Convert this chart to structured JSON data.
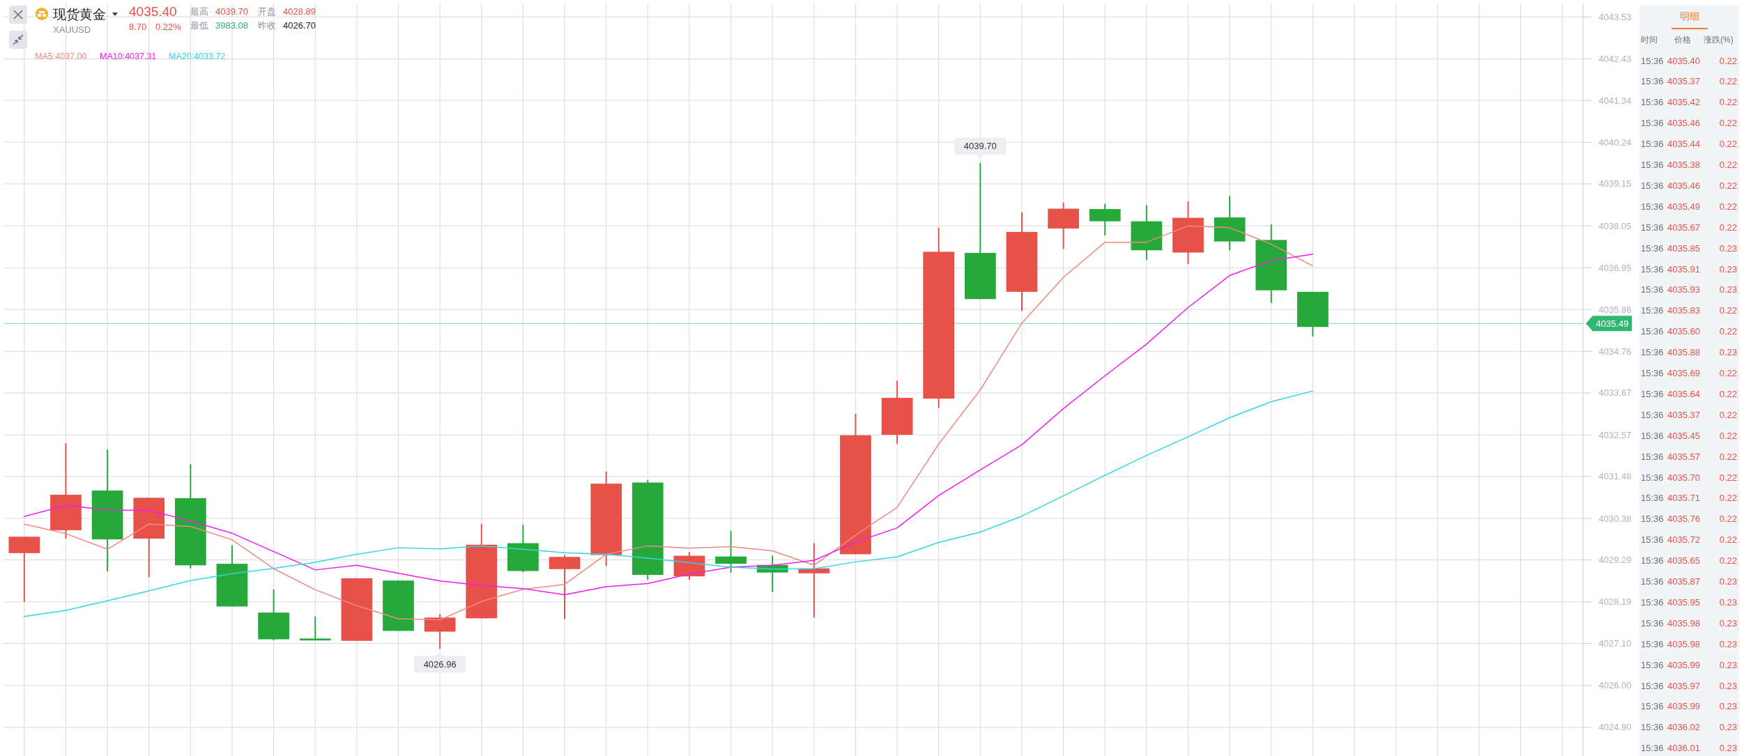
{
  "chart_data": {
    "type": "candlestick",
    "title": "现货黄金",
    "subtitle": "XAUUSD",
    "categories": [
      null,
      null,
      null,
      null,
      null,
      null,
      null,
      null,
      null,
      null,
      null,
      null,
      null,
      null,
      null,
      null,
      null,
      null,
      null,
      null,
      null,
      null,
      null,
      null,
      null,
      null,
      null,
      null,
      null,
      null,
      null,
      null,
      null,
      null,
      null,
      null,
      null,
      null
    ],
    "ohlc": [
      [
        4029.47,
        4029.9,
        4028.19,
        4029.9
      ],
      [
        4030.07,
        4032.35,
        4029.85,
        4031.0
      ],
      [
        4031.11,
        4032.18,
        4028.99,
        4029.83
      ],
      [
        4029.85,
        4030.92,
        4028.84,
        4030.92
      ],
      [
        4030.91,
        4031.8,
        4029.07,
        4029.15
      ],
      [
        4029.19,
        4029.67,
        4028.07,
        4028.07
      ],
      [
        4027.91,
        4028.52,
        4027.18,
        4027.21
      ],
      [
        4027.23,
        4027.81,
        4027.18,
        4027.18
      ],
      [
        4027.17,
        4028.81,
        4027.17,
        4028.81
      ],
      [
        4028.75,
        4028.75,
        4027.43,
        4027.43
      ],
      [
        4027.41,
        4027.87,
        4026.96,
        4027.78
      ],
      [
        4027.76,
        4030.24,
        4027.76,
        4029.69
      ],
      [
        4029.73,
        4030.21,
        4028.97,
        4029.0
      ],
      [
        4029.05,
        4029.42,
        4027.74,
        4029.37
      ],
      [
        4029.42,
        4031.61,
        4029.13,
        4031.29
      ],
      [
        4031.32,
        4031.39,
        4028.77,
        4028.9
      ],
      [
        4028.86,
        4029.5,
        4028.77,
        4029.4
      ],
      [
        4029.38,
        4030.05,
        4028.96,
        4029.19
      ],
      [
        4029.16,
        4029.4,
        4028.45,
        4028.96
      ],
      [
        4028.94,
        4029.73,
        4027.78,
        4029.07
      ],
      [
        4029.44,
        4033.12,
        4029.44,
        4032.56
      ],
      [
        4032.57,
        4033.99,
        4032.33,
        4033.54
      ],
      [
        4033.52,
        4038.0,
        4033.27,
        4037.37
      ],
      [
        4037.34,
        4039.7,
        4036.13,
        4036.13
      ],
      [
        4036.32,
        4038.4,
        4035.82,
        4037.89
      ],
      [
        4037.98,
        4038.66,
        4037.44,
        4038.5
      ],
      [
        4038.49,
        4038.63,
        4037.8,
        4038.17
      ],
      [
        4038.17,
        4038.59,
        4037.16,
        4037.41
      ],
      [
        4037.35,
        4038.69,
        4037.05,
        4038.26
      ],
      [
        4038.27,
        4038.83,
        4037.41,
        4037.64
      ],
      [
        4037.68,
        4038.09,
        4036.03,
        4036.36
      ],
      [
        4036.32,
        4036.32,
        4035.15,
        4035.4
      ],
      null,
      null,
      null,
      null,
      null,
      null
    ],
    "colors": [
      "#e8514a",
      "#e8514a",
      "#27a83b",
      "#e8514a",
      "#27a83b",
      "#27a83b",
      "#27a83b",
      "#27a83b",
      "#e8514a",
      "#27a83b",
      "#e8514a",
      "#e8514a",
      "#27a83b",
      "#e8514a",
      "#e8514a",
      "#27a83b",
      "#e8514a",
      "#27a83b",
      "#27a83b",
      "#e8514a",
      "#e8514a",
      "#e8514a",
      "#e8514a",
      "#27a83b",
      "#e8514a",
      "#e8514a",
      "#27a83b",
      "#27a83b",
      "#e8514a",
      "#27a83b",
      "#27a83b",
      "#27a83b",
      null,
      null,
      null,
      null,
      null,
      null
    ],
    "series": [
      {
        "type": "line",
        "name": "MA5:4037.00",
        "color": "#f08a80",
        "values": [
          4030.23,
          4029.98,
          4029.57,
          4030.23,
          4030.17,
          4029.82,
          4029.06,
          4028.51,
          4028.09,
          4027.75,
          4027.72,
          4028.2,
          4028.52,
          4028.65,
          4029.44,
          4029.66,
          4029.6,
          4029.64,
          4029.53,
          4029.15,
          4029.94,
          4030.67,
          4032.33,
          4033.75,
          4035.5,
          4036.7,
          4037.62,
          4037.62,
          4038.05,
          4038.0,
          4037.57,
          4037.0,
          null,
          null,
          null,
          null,
          null,
          null
        ]
      },
      {
        "type": "line",
        "name": "MA10:4037.31",
        "color": "#f01cf0",
        "values": [
          4030.43,
          4030.72,
          4030.6,
          4030.59,
          4030.31,
          4029.99,
          4029.51,
          4029.03,
          4029.15,
          4028.94,
          4028.74,
          4028.62,
          4028.54,
          4028.38,
          4028.59,
          4028.67,
          4028.92,
          4029.1,
          4029.15,
          4029.28,
          4029.76,
          4030.13,
          4030.98,
          4031.65,
          4032.31,
          4033.26,
          4034.12,
          4034.95,
          4035.91,
          4036.75,
          4037.14,
          4037.31,
          null,
          null,
          null,
          null,
          null,
          null
        ]
      },
      {
        "type": "line",
        "name": "MA20:4033.72",
        "color": "#33d6e0",
        "values": [
          4027.81,
          4027.97,
          4028.22,
          4028.48,
          4028.75,
          4028.93,
          4029.07,
          4029.23,
          4029.44,
          4029.61,
          4029.58,
          4029.66,
          4029.57,
          4029.48,
          4029.44,
          4029.34,
          4029.22,
          4029.1,
          4029.05,
          4029.06,
          4029.24,
          4029.37,
          4029.75,
          4030.02,
          4030.44,
          4030.97,
          4031.51,
          4032.03,
          4032.52,
          4033.02,
          4033.44,
          4033.72,
          null,
          null,
          null,
          null,
          null,
          null
        ]
      }
    ],
    "ylim": [
      4024.15,
      4043.88
    ],
    "yticks": [
      4043.53,
      4042.43,
      4041.34,
      4040.24,
      4039.15,
      4038.05,
      4036.95,
      4035.86,
      4034.76,
      4033.67,
      4032.57,
      4031.48,
      4030.38,
      4029.29,
      4028.19,
      {
        "value": 4027.1,
        "label": "4027.10"
      },
      {
        "value": 4026,
        "label": "4026.00"
      },
      {
        "value": 4024.9,
        "label": "4024.90"
      }
    ],
    "tick_labels": "y",
    "grid": true,
    "ref_lines": [
      {
        "axis": "y",
        "value": 4035.49,
        "label": "4035.49",
        "color": "#2eb872"
      }
    ],
    "annotations": [
      "4035.40",
      "8.70",
      "0.22%",
      "最高",
      "4039.70",
      "开盘",
      "4028.89",
      "最低",
      "3983.08",
      "昨收",
      "4026.70",
      "4039.70",
      "4026.96",
      "明细",
      "时间",
      "价格",
      "涨跌(%)",
      "15:36 4035.40 0.22",
      "15:36 4035.37 0.22",
      "15:36 4035.42 0.22",
      "15:36 4035.46 0.22",
      "15:36 4035.44 0.22",
      "15:36 4035.38 0.22",
      "15:36 4035.46 0.22",
      "15:36 4035.49 0.22",
      "15:36 4035.67 0.22",
      "15:36 4035.85 0.23",
      "15:36 4035.91 0.23",
      "15:36 4035.93 0.23",
      "15:36 4035.83 0.22",
      "15:36 4035.60 0.22",
      "15:36 4035.88 0.23",
      "15:36 4035.69 0.22",
      "15:36 4035.64 0.22",
      "15:36 4035.37 0.22",
      "15:36 4035.45 0.22",
      "15:36 4035.57 0.22",
      "15:36 4035.70 0.22",
      "15:36 4035.71 0.22",
      "15:36 4035.76 0.22",
      "15:36 4035.72 0.22",
      "15:36 4035.65 0.22",
      "15:36 4035.87 0.23",
      "15:36 4035.95 0.23",
      "15:36 4035.98 0.23",
      "15:36 4035.98 0.23",
      "15:36 4035.99 0.23",
      "15:36 4035.97 0.23",
      "15:36 4035.99 0.23",
      "15:36 4036.02 0.23",
      "15:36 4036.01 0.23"
    ]
  }
}
